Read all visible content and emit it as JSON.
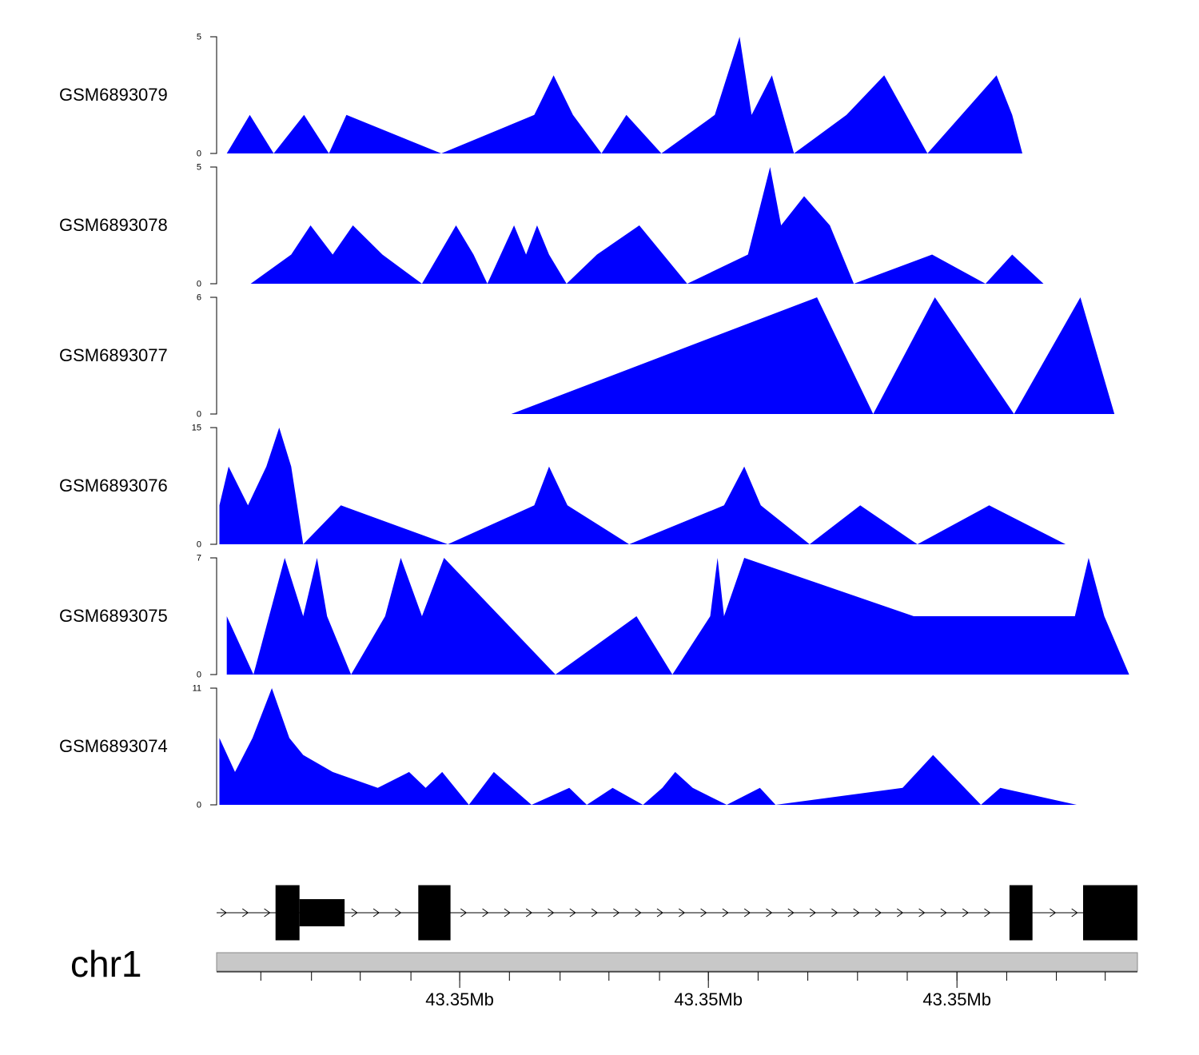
{
  "colors": {
    "coverage": "#0000ff",
    "gene": "#000000",
    "ideogram": "#c8c8c8",
    "axis": "#000000"
  },
  "chart_data": {
    "type": "area",
    "title": "",
    "xlim": [
      0,
      100
    ],
    "tracks": [
      {
        "name": "GSM6893079",
        "ylim": [
          0,
          5
        ],
        "tick_labels": [
          "5",
          "0"
        ],
        "x": [
          1.1,
          3.6,
          6.2,
          9.5,
          12.2,
          14.1,
          24.4,
          34.5,
          36.6,
          38.7,
          41.8,
          44.5,
          48.3,
          54.1,
          56.8,
          58.1,
          60.3,
          62.7,
          68.4,
          72.5,
          77.2,
          80.9,
          84.7,
          86.4,
          87.5,
          88.1,
          93.4
        ],
        "y": [
          0,
          1.65,
          0,
          1.65,
          0,
          1.65,
          0,
          1.65,
          3.35,
          1.65,
          0,
          1.65,
          0,
          1.65,
          5,
          1.65,
          3.35,
          0,
          1.65,
          3.35,
          0,
          1.65,
          3.35,
          1.65,
          0,
          0,
          0
        ]
      },
      {
        "name": "GSM6893078",
        "ylim": [
          0,
          5
        ],
        "tick_labels": [
          "5",
          "0"
        ],
        "x": [
          3.7,
          8.1,
          10.2,
          12.6,
          14.8,
          18.0,
          22.3,
          26.0,
          27.9,
          29.4,
          32.3,
          33.6,
          34.8,
          36.1,
          38.0,
          41.3,
          45.9,
          51.1,
          57.7,
          60.1,
          61.3,
          63.8,
          66.6,
          69.2,
          77.7,
          83.5,
          86.4,
          89.8,
          95.4
        ],
        "y": [
          0,
          1.25,
          2.5,
          1.25,
          2.5,
          1.25,
          0,
          2.5,
          1.25,
          0,
          2.5,
          1.25,
          2.5,
          1.25,
          0,
          1.25,
          2.5,
          0,
          1.25,
          5,
          2.5,
          3.75,
          2.5,
          0,
          1.25,
          0,
          1.25,
          0,
          0
        ]
      },
      {
        "name": "GSM6893077",
        "ylim": [
          0,
          6
        ],
        "tick_labels": [
          "6",
          "0"
        ],
        "x": [
          32.0,
          65.2,
          71.3,
          78.0,
          86.6,
          93.8,
          97.5
        ],
        "y": [
          0,
          6,
          0,
          6,
          0,
          6,
          0
        ]
      },
      {
        "name": "GSM6893076",
        "ylim": [
          0,
          15
        ],
        "tick_labels": [
          "15",
          "0"
        ],
        "x": [
          0.3,
          1.3,
          3.4,
          5.4,
          6.8,
          8.1,
          9.4,
          13.5,
          25.1,
          34.5,
          36.1,
          38.1,
          44.8,
          55.1,
          57.3,
          59.1,
          64.4,
          69.9,
          76.1,
          83.9,
          92.2
        ],
        "y": [
          5,
          10,
          5,
          10,
          15,
          10,
          0,
          5,
          0,
          5,
          10,
          5,
          0,
          5,
          10,
          5,
          0,
          5,
          0,
          5,
          0
        ]
      },
      {
        "name": "GSM6893075",
        "ylim": [
          0,
          7
        ],
        "tick_labels": [
          "7",
          "0"
        ],
        "x": [
          1.1,
          4.0,
          7.4,
          9.4,
          10.9,
          12.0,
          14.6,
          18.3,
          20.0,
          22.3,
          24.7,
          36.8,
          45.6,
          49.5,
          53.6,
          54.4,
          55.1,
          57.3,
          75.7,
          93.2,
          94.7,
          96.4,
          99.1
        ],
        "y": [
          3.5,
          0,
          7,
          3.5,
          7,
          3.5,
          0,
          3.5,
          7,
          3.5,
          7,
          0,
          3.5,
          0,
          3.5,
          7,
          3.5,
          7,
          3.5,
          3.5,
          7,
          3.5,
          0
        ]
      },
      {
        "name": "GSM6893074",
        "ylim": [
          0,
          11
        ],
        "tick_labels": [
          "11",
          "0"
        ],
        "x": [
          0.3,
          2.0,
          3.9,
          6.0,
          7.9,
          9.4,
          12.6,
          17.5,
          20.9,
          22.7,
          24.5,
          27.4,
          30.1,
          34.2,
          38.3,
          40.2,
          43.0,
          46.3,
          48.4,
          49.8,
          51.7,
          55.4,
          59.0,
          60.7,
          74.5,
          77.8,
          83.0,
          85.1,
          93.4
        ],
        "y": [
          6.3,
          3.1,
          6.3,
          11,
          6.3,
          4.7,
          3.1,
          1.6,
          3.1,
          1.6,
          3.1,
          0,
          3.1,
          0,
          1.6,
          0,
          1.6,
          0,
          1.6,
          3.1,
          1.6,
          0,
          1.6,
          0,
          1.6,
          4.7,
          0,
          1.6,
          0
        ]
      }
    ],
    "gene_model": {
      "strand": "+",
      "exons": [
        {
          "start": 6.4,
          "end": 9.0,
          "type": "utr_tall"
        },
        {
          "start": 9.0,
          "end": 13.9,
          "type": "cds_short"
        },
        {
          "start": 21.9,
          "end": 25.4,
          "type": "exon"
        },
        {
          "start": 86.1,
          "end": 88.6,
          "type": "exon"
        },
        {
          "start": 94.1,
          "end": 100.0,
          "type": "exon"
        }
      ]
    },
    "ideogram": {
      "chromosome": "chr1",
      "label": "chr1"
    },
    "x_axis": {
      "minor_ticks": [
        4.8,
        10.3,
        15.6,
        21.1,
        26.4,
        31.8,
        37.3,
        42.6,
        48.1,
        53.4,
        58.8,
        64.2,
        69.6,
        75.0,
        80.4,
        85.8,
        91.2,
        96.5
      ],
      "major_ticks": [
        {
          "pos": 26.4,
          "label": "43.35Mb"
        },
        {
          "pos": 53.4,
          "label": "43.35Mb"
        },
        {
          "pos": 80.4,
          "label": "43.35Mb"
        }
      ]
    }
  }
}
